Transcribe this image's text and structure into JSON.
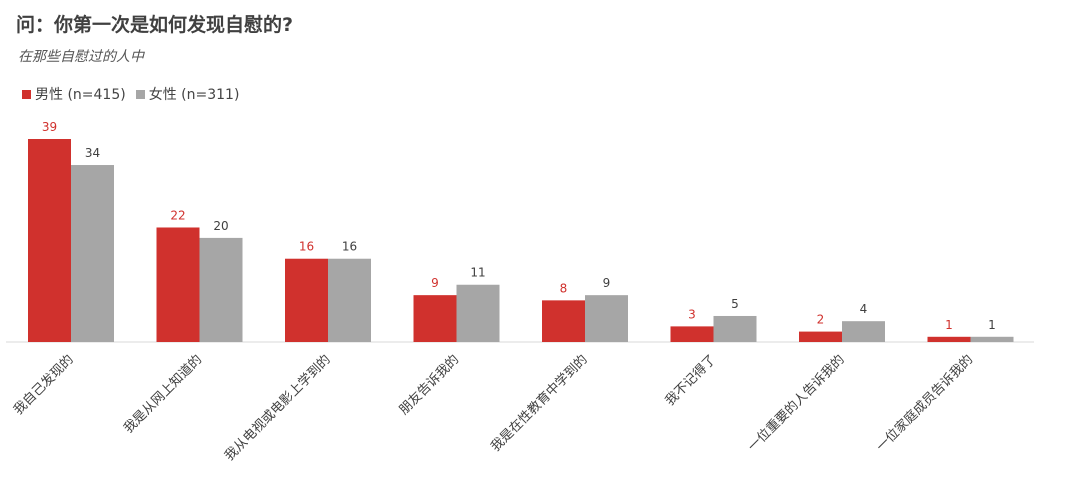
{
  "chart_data": {
    "type": "bar",
    "title": "问：你第一次是如何发现自慰的?",
    "subtitle": "在那些自慰过的人中",
    "categories": [
      "我自己发现的",
      "我是从网上知道的",
      "我从电视或电影上学到的",
      "朋友告诉我的",
      "我是在性教育中学到的",
      "我不记得了",
      "一位重要的人告诉我的",
      "一位家庭成员告诉我的"
    ],
    "series": [
      {
        "name": "男性 (n=415)",
        "values": [
          39,
          22,
          16,
          9,
          8,
          3,
          2,
          1
        ],
        "color": "#d0312d",
        "label_color": "#d0312d"
      },
      {
        "name": "女性 (n=311)",
        "values": [
          34,
          20,
          16,
          11,
          9,
          5,
          4,
          1
        ],
        "color": "#a6a6a6",
        "label_color": "#404040"
      }
    ],
    "ylim": [
      0,
      39
    ],
    "grid": false,
    "legend_position": "top-left",
    "data_labels": true
  }
}
